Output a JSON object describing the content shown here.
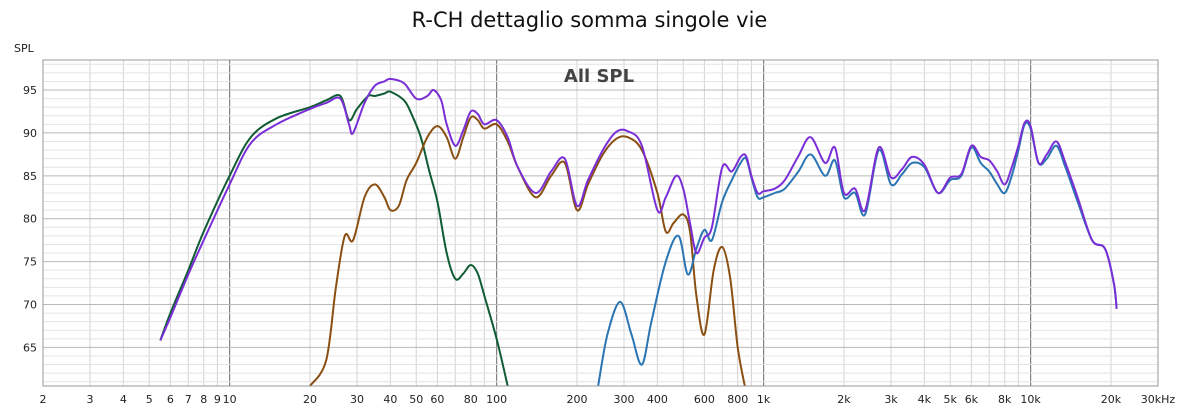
{
  "chart_data": {
    "type": "line",
    "title": "R-CH dettaglio somma singole vie",
    "ylabel": "SPL",
    "annotation": "All SPL",
    "xscale": "log",
    "xlim": [
      2,
      30000
    ],
    "ylim": [
      60.5,
      98.5
    ],
    "grid": true,
    "yticks": [
      65,
      70,
      75,
      80,
      85,
      90,
      95
    ],
    "xticks": [
      {
        "v": 2,
        "label": "2"
      },
      {
        "v": 3,
        "label": "3"
      },
      {
        "v": 4,
        "label": "4"
      },
      {
        "v": 5,
        "label": "5"
      },
      {
        "v": 6,
        "label": "6"
      },
      {
        "v": 7,
        "label": "7"
      },
      {
        "v": 8,
        "label": "8"
      },
      {
        "v": 9,
        "label": "9"
      },
      {
        "v": 10,
        "label": "10"
      },
      {
        "v": 20,
        "label": "20"
      },
      {
        "v": 30,
        "label": "30"
      },
      {
        "v": 40,
        "label": "40"
      },
      {
        "v": 50,
        "label": "50"
      },
      {
        "v": 60,
        "label": "60"
      },
      {
        "v": 80,
        "label": "80"
      },
      {
        "v": 100,
        "label": "100"
      },
      {
        "v": 200,
        "label": "200"
      },
      {
        "v": 300,
        "label": "300"
      },
      {
        "v": 400,
        "label": "400"
      },
      {
        "v": 600,
        "label": "600"
      },
      {
        "v": 800,
        "label": "800"
      },
      {
        "v": 1000,
        "label": "1k"
      },
      {
        "v": 2000,
        "label": "2k"
      },
      {
        "v": 3000,
        "label": "3k"
      },
      {
        "v": 4000,
        "label": "4k"
      },
      {
        "v": 5000,
        "label": "5k"
      },
      {
        "v": 6000,
        "label": "6k"
      },
      {
        "v": 8000,
        "label": "8k"
      },
      {
        "v": 10000,
        "label": "10k"
      },
      {
        "v": 20000,
        "label": "20k"
      },
      {
        "v": 30000,
        "label": "30kHz"
      }
    ],
    "series": [
      {
        "color": "#0f5c33",
        "points": [
          [
            5.5,
            65.8
          ],
          [
            6,
            69
          ],
          [
            7,
            74
          ],
          [
            8,
            78.5
          ],
          [
            10,
            85
          ],
          [
            12,
            89.5
          ],
          [
            15,
            91.7
          ],
          [
            20,
            93
          ],
          [
            23,
            93.8
          ],
          [
            26,
            94.3
          ],
          [
            28,
            91.5
          ],
          [
            30,
            92.8
          ],
          [
            33,
            94.3
          ],
          [
            35,
            94.3
          ],
          [
            38,
            94.6
          ],
          [
            40,
            94.8
          ],
          [
            45,
            93.8
          ],
          [
            48,
            92.2
          ],
          [
            52,
            89.5
          ],
          [
            56,
            85.5
          ],
          [
            60,
            82
          ],
          [
            65,
            76
          ],
          [
            70,
            73
          ],
          [
            75,
            73.6
          ],
          [
            80,
            74.6
          ],
          [
            85,
            73.6
          ],
          [
            90,
            71
          ],
          [
            100,
            66
          ],
          [
            110,
            60.5
          ]
        ]
      },
      {
        "color": "#8a4f12",
        "points": [
          [
            20,
            60.5
          ],
          [
            23,
            63.5
          ],
          [
            25,
            72
          ],
          [
            27,
            78
          ],
          [
            29,
            77.5
          ],
          [
            32,
            82.5
          ],
          [
            35,
            84
          ],
          [
            38,
            82.5
          ],
          [
            40,
            81
          ],
          [
            43,
            81.5
          ],
          [
            46,
            84.5
          ],
          [
            50,
            86.5
          ],
          [
            55,
            89.5
          ],
          [
            60,
            90.8
          ],
          [
            65,
            89.5
          ],
          [
            70,
            87
          ],
          [
            75,
            89.5
          ],
          [
            80,
            91.8
          ],
          [
            85,
            91.5
          ],
          [
            90,
            90.5
          ],
          [
            100,
            91
          ],
          [
            110,
            89
          ],
          [
            120,
            86
          ],
          [
            140,
            82.5
          ],
          [
            160,
            85
          ],
          [
            180,
            86.5
          ],
          [
            200,
            81
          ],
          [
            220,
            84
          ],
          [
            250,
            87.5
          ],
          [
            280,
            89.3
          ],
          [
            310,
            89.5
          ],
          [
            350,
            88
          ],
          [
            400,
            83
          ],
          [
            430,
            78.5
          ],
          [
            460,
            79.5
          ],
          [
            500,
            80.5
          ],
          [
            530,
            78.5
          ],
          [
            560,
            71
          ],
          [
            600,
            66.5
          ],
          [
            650,
            74
          ],
          [
            700,
            76.7
          ],
          [
            750,
            73
          ],
          [
            800,
            65
          ],
          [
            850,
            60.5
          ]
        ]
      },
      {
        "color": "#2a75b3",
        "points": [
          [
            240,
            60.5
          ],
          [
            260,
            66.5
          ],
          [
            290,
            70.3
          ],
          [
            320,
            66.5
          ],
          [
            350,
            63
          ],
          [
            380,
            68
          ],
          [
            430,
            75
          ],
          [
            480,
            78
          ],
          [
            520,
            73.5
          ],
          [
            560,
            76.5
          ],
          [
            600,
            78.7
          ],
          [
            640,
            77.5
          ],
          [
            700,
            82
          ],
          [
            760,
            84.5
          ],
          [
            820,
            86.5
          ],
          [
            860,
            87
          ],
          [
            900,
            84.8
          ],
          [
            950,
            82.5
          ],
          [
            1000,
            82.5
          ],
          [
            1100,
            83
          ],
          [
            1200,
            83.5
          ],
          [
            1350,
            85.5
          ],
          [
            1500,
            87.5
          ],
          [
            1700,
            85
          ],
          [
            1850,
            86.8
          ],
          [
            2000,
            82.5
          ],
          [
            2200,
            83
          ],
          [
            2400,
            80.5
          ],
          [
            2700,
            88
          ],
          [
            3000,
            84
          ],
          [
            3300,
            85.2
          ],
          [
            3600,
            86.5
          ],
          [
            4000,
            86
          ],
          [
            4500,
            83
          ],
          [
            5000,
            84.5
          ],
          [
            5500,
            85
          ],
          [
            6000,
            88.3
          ],
          [
            6500,
            86.5
          ],
          [
            7000,
            85.5
          ],
          [
            7500,
            84
          ],
          [
            8000,
            83
          ],
          [
            8500,
            85
          ],
          [
            9000,
            88
          ],
          [
            9500,
            91
          ],
          [
            10000,
            90.5
          ],
          [
            10700,
            86.5
          ],
          [
            11500,
            87
          ],
          [
            12500,
            88.5
          ],
          [
            13500,
            86
          ],
          [
            15000,
            82
          ],
          [
            17000,
            77.5
          ],
          [
            19000,
            76.5
          ],
          [
            20500,
            72.5
          ],
          [
            21000,
            69.5
          ]
        ]
      },
      {
        "color": "#7a2fd6",
        "points": [
          [
            5.5,
            65.8
          ],
          [
            6,
            68.5
          ],
          [
            7,
            73.5
          ],
          [
            8,
            77.5
          ],
          [
            10,
            84
          ],
          [
            12,
            88.8
          ],
          [
            15,
            91
          ],
          [
            20,
            92.8
          ],
          [
            23,
            93.5
          ],
          [
            26,
            94
          ],
          [
            28,
            91
          ],
          [
            29,
            90
          ],
          [
            32,
            93.5
          ],
          [
            35,
            95.5
          ],
          [
            38,
            96
          ],
          [
            40,
            96.3
          ],
          [
            45,
            95.8
          ],
          [
            50,
            94
          ],
          [
            55,
            94.3
          ],
          [
            58,
            95
          ],
          [
            62,
            93.8
          ],
          [
            65,
            91
          ],
          [
            70,
            88.5
          ],
          [
            75,
            90.3
          ],
          [
            80,
            92.5
          ],
          [
            85,
            92.2
          ],
          [
            90,
            91
          ],
          [
            100,
            91.5
          ],
          [
            110,
            89.5
          ],
          [
            120,
            86
          ],
          [
            140,
            83
          ],
          [
            160,
            85.5
          ],
          [
            180,
            87
          ],
          [
            200,
            81.5
          ],
          [
            220,
            84.5
          ],
          [
            250,
            88
          ],
          [
            280,
            90.1
          ],
          [
            310,
            90.2
          ],
          [
            350,
            88.5
          ],
          [
            400,
            81
          ],
          [
            430,
            82.5
          ],
          [
            470,
            85
          ],
          [
            500,
            83.5
          ],
          [
            530,
            79.5
          ],
          [
            560,
            76
          ],
          [
            600,
            77.8
          ],
          [
            640,
            79
          ],
          [
            700,
            86
          ],
          [
            760,
            85.5
          ],
          [
            820,
            87.2
          ],
          [
            860,
            87.3
          ],
          [
            900,
            85
          ],
          [
            950,
            83
          ],
          [
            1000,
            83.2
          ],
          [
            1100,
            83.5
          ],
          [
            1200,
            84.5
          ],
          [
            1350,
            87.3
          ],
          [
            1500,
            89.5
          ],
          [
            1700,
            86.5
          ],
          [
            1850,
            88.3
          ],
          [
            2000,
            83
          ],
          [
            2200,
            83.5
          ],
          [
            2400,
            81
          ],
          [
            2700,
            88.3
          ],
          [
            3000,
            84.8
          ],
          [
            3300,
            85.8
          ],
          [
            3600,
            87.2
          ],
          [
            4000,
            86.3
          ],
          [
            4500,
            83
          ],
          [
            5000,
            84.8
          ],
          [
            5500,
            85.2
          ],
          [
            6000,
            88.5
          ],
          [
            6500,
            87.2
          ],
          [
            7000,
            86.8
          ],
          [
            7500,
            85.5
          ],
          [
            8000,
            84
          ],
          [
            8500,
            86
          ],
          [
            9000,
            88.5
          ],
          [
            9500,
            91.2
          ],
          [
            10000,
            90.8
          ],
          [
            10700,
            86.5
          ],
          [
            11500,
            87.5
          ],
          [
            12500,
            89
          ],
          [
            13500,
            86.5
          ],
          [
            15000,
            82.5
          ],
          [
            17000,
            77.5
          ],
          [
            19000,
            76.5
          ],
          [
            20500,
            72.5
          ],
          [
            21000,
            69.5
          ]
        ]
      }
    ]
  }
}
